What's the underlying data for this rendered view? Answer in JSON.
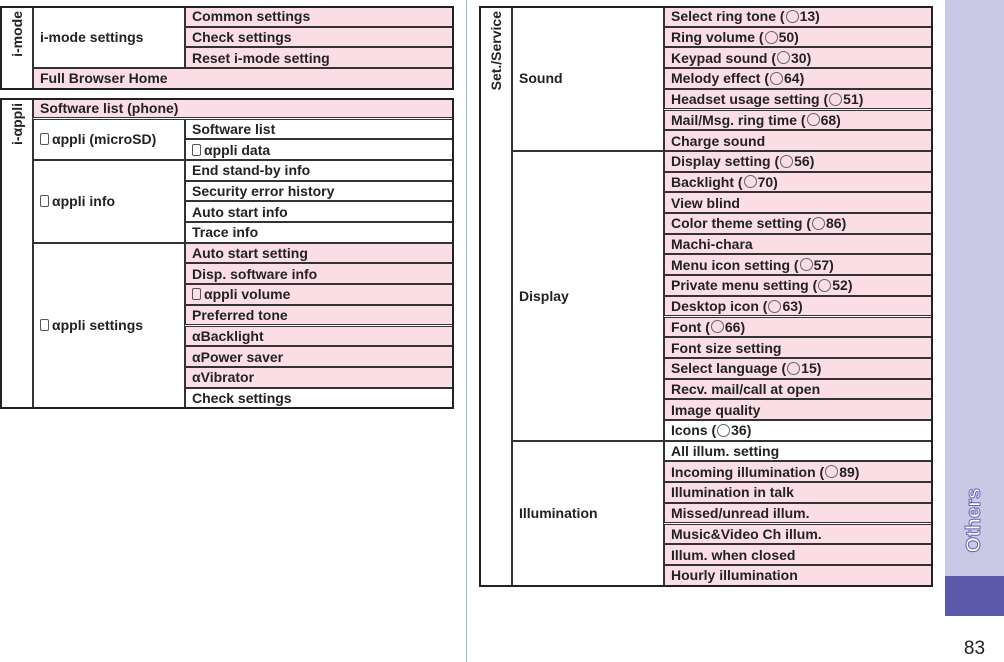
{
  "left": {
    "sections": [
      {
        "label": "i-mode",
        "groups": [
          {
            "name": "i-mode settings",
            "items": [
              {
                "text": "Common settings",
                "shaded": true
              },
              {
                "text": "Check settings",
                "shaded": true
              },
              {
                "text": "Reset i-mode setting",
                "shaded": true
              }
            ]
          },
          {
            "name": "Full Browser Home",
            "shaded": true,
            "items": []
          }
        ]
      },
      {
        "label": "i-αppli",
        "groups": [
          {
            "name": "Software list (phone)",
            "shaded": true,
            "items": []
          },
          {
            "name": "αppli (microSD)",
            "icon": true,
            "items": [
              {
                "text": "Software list",
                "shaded": false
              },
              {
                "text": "αppli data",
                "icon": true,
                "shaded": false
              }
            ]
          },
          {
            "name": "αppli info",
            "icon": true,
            "items": [
              {
                "text": "End stand-by info",
                "shaded": false
              },
              {
                "text": "Security error history",
                "shaded": false
              },
              {
                "text": "Auto start info",
                "shaded": false
              },
              {
                "text": "Trace info",
                "shaded": false
              }
            ]
          },
          {
            "name": "αppli settings",
            "icon": true,
            "items": [
              {
                "text": "Auto start setting",
                "shaded": true
              },
              {
                "text": "Disp. software info",
                "shaded": true
              },
              {
                "text": "αppli volume",
                "icon": true,
                "shaded": true
              },
              {
                "text": "Preferred tone",
                "shaded": true
              },
              {
                "text": "αBacklight",
                "shaded": true
              },
              {
                "text": "αPower saver",
                "shaded": true
              },
              {
                "text": "αVibrator",
                "shaded": true
              },
              {
                "text": "Check settings",
                "shaded": false
              }
            ]
          }
        ]
      }
    ]
  },
  "right": {
    "sections": [
      {
        "label": "Set./Service",
        "groups": [
          {
            "name": "Sound",
            "items": [
              {
                "text": "Select ring tone (",
                "ref": "13)",
                "shaded": true
              },
              {
                "text": "Ring volume (",
                "ref": "50)",
                "shaded": true
              },
              {
                "text": "Keypad sound (",
                "ref": "30)",
                "shaded": true
              },
              {
                "text": "Melody effect (",
                "ref": "64)",
                "shaded": true
              },
              {
                "text": "Headset usage setting (",
                "ref": "51)",
                "shaded": true
              },
              {
                "text": "Mail/Msg. ring time (",
                "ref": "68)",
                "shaded": true
              },
              {
                "text": "Charge sound",
                "shaded": true
              }
            ]
          },
          {
            "name": "Display",
            "items": [
              {
                "text": "Display setting (",
                "ref": "56)",
                "shaded": true
              },
              {
                "text": "Backlight (",
                "ref": "70)",
                "shaded": true
              },
              {
                "text": "View blind",
                "shaded": true
              },
              {
                "text": "Color theme setting (",
                "ref": "86)",
                "shaded": true
              },
              {
                "text": "Machi-chara",
                "shaded": true
              },
              {
                "text": "Menu icon setting (",
                "ref": "57)",
                "shaded": true
              },
              {
                "text": "Private menu setting (",
                "ref": "52)",
                "shaded": true
              },
              {
                "text": "Desktop icon (",
                "ref": "63)",
                "shaded": true
              },
              {
                "text": "Font (",
                "ref": "66)",
                "shaded": true
              },
              {
                "text": "Font size setting",
                "shaded": true
              },
              {
                "text": "Select language (",
                "ref": "15)",
                "shaded": true
              },
              {
                "text": "Recv. mail/call at open",
                "shaded": true
              },
              {
                "text": "Image quality",
                "shaded": true
              },
              {
                "text": "Icons (",
                "ref": "36)",
                "shaded": false
              }
            ]
          },
          {
            "name": "Illumination",
            "items": [
              {
                "text": "All illum. setting",
                "shaded": false
              },
              {
                "text": "Incoming illumination (",
                "ref": "89)",
                "shaded": true
              },
              {
                "text": "Illumination in talk",
                "shaded": true
              },
              {
                "text": "Missed/unread illum.",
                "shaded": true
              },
              {
                "text": "Music&Video Ch illum.",
                "shaded": true
              },
              {
                "text": "Illum. when closed",
                "shaded": true
              },
              {
                "text": "Hourly illumination",
                "shaded": true
              }
            ]
          }
        ]
      }
    ]
  },
  "side_tab": "Others",
  "page_number": "83"
}
